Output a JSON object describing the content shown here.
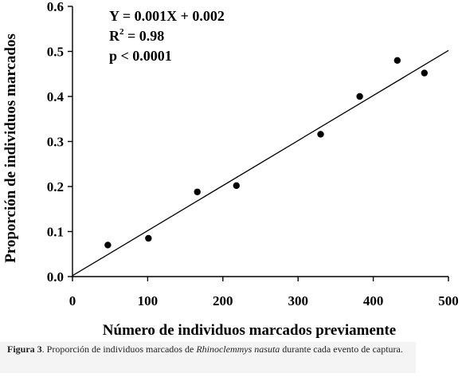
{
  "chart_data": {
    "type": "scatter",
    "xlabel": "Número de individuos marcados previamente",
    "ylabel": "Proporción de individuos marcados",
    "xlim": [
      0,
      500
    ],
    "ylim": [
      0,
      0.6
    ],
    "xticks": [
      0,
      100,
      200,
      300,
      400,
      500
    ],
    "yticks": [
      0.0,
      0.1,
      0.2,
      0.3,
      0.4,
      0.5,
      0.6
    ],
    "xtick_labels": [
      "0",
      "100",
      "200",
      "300",
      "400",
      "500"
    ],
    "ytick_labels": [
      "0.0",
      "0.1",
      "0.2",
      "0.3",
      "0.4",
      "0.5",
      "0.6"
    ],
    "points": [
      {
        "x": 47,
        "y": 0.07
      },
      {
        "x": 101,
        "y": 0.085
      },
      {
        "x": 166,
        "y": 0.188
      },
      {
        "x": 218,
        "y": 0.202
      },
      {
        "x": 330,
        "y": 0.316
      },
      {
        "x": 382,
        "y": 0.4
      },
      {
        "x": 432,
        "y": 0.48
      },
      {
        "x": 468,
        "y": 0.452
      }
    ],
    "trendline": {
      "slope": 0.001,
      "intercept": 0.002,
      "x_start": 0,
      "x_end": 500
    },
    "annotations": {
      "equation": "Y = 0.001X + 0.002",
      "r2_base": "R",
      "r2_sup": "2",
      "r2_rest": " = 0.98",
      "pvalue": "p < 0.0001"
    },
    "grid": false,
    "legend": "none"
  },
  "caption": {
    "label": "Figura 3",
    "text_before": ". Proporción de individuos marcados de ",
    "species": "Rhinoclemmys nasuta",
    "text_after": " durante cada evento de captura."
  }
}
